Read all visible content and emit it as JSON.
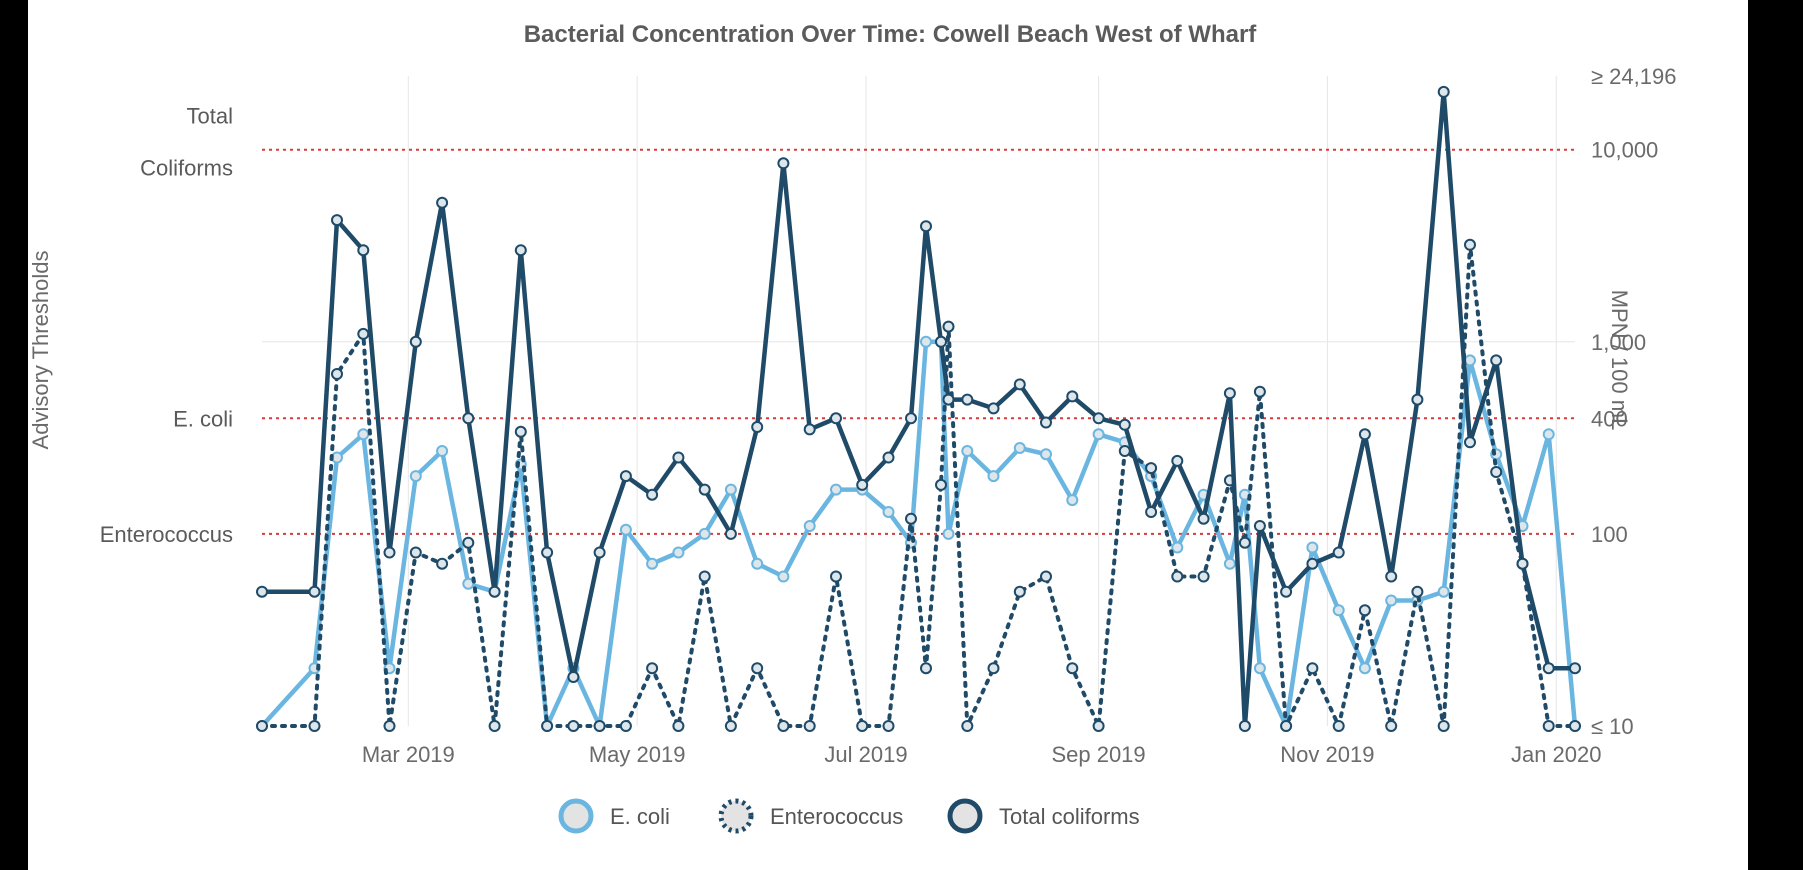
{
  "chart_data": {
    "type": "line",
    "title": "Bacterial Concentration Over Time: Cowell Beach West of Wharf",
    "y_left_label": "Advisory Thresholds",
    "y_right_label": "MPN / 100 mL",
    "y_scale": "log",
    "ylim": [
      10,
      24196
    ],
    "y_ticks": [
      {
        "value": 24196,
        "label": "≥ 24,196"
      },
      {
        "value": 10000,
        "label": "10,000"
      },
      {
        "value": 1000,
        "label": "1,000"
      },
      {
        "value": 400,
        "label": "400"
      },
      {
        "value": 100,
        "label": "100"
      },
      {
        "value": 10,
        "label": "≤ 10"
      }
    ],
    "x_ticks": [
      {
        "date": "2019-03-01",
        "label": "Mar 2019"
      },
      {
        "date": "2019-05-01",
        "label": "May 2019"
      },
      {
        "date": "2019-07-01",
        "label": "Jul 2019"
      },
      {
        "date": "2019-09-01",
        "label": "Sep 2019"
      },
      {
        "date": "2019-11-01",
        "label": "Nov 2019"
      },
      {
        "date": "2020-01-01",
        "label": "Jan 2020"
      }
    ],
    "thresholds": [
      {
        "line1": "Total",
        "line2": "Coliforms",
        "value": 10000
      },
      {
        "line1": "E. coli",
        "line2": "",
        "value": 400
      },
      {
        "line1": "Enterococcus",
        "line2": "",
        "value": 100
      }
    ],
    "x": [
      "2019-01-21",
      "2019-02-04",
      "2019-02-10",
      "2019-02-17",
      "2019-02-24",
      "2019-03-03",
      "2019-03-10",
      "2019-03-17",
      "2019-03-24",
      "2019-03-31",
      "2019-04-07",
      "2019-04-14",
      "2019-04-21",
      "2019-04-28",
      "2019-05-05",
      "2019-05-12",
      "2019-05-19",
      "2019-05-26",
      "2019-06-02",
      "2019-06-09",
      "2019-06-16",
      "2019-06-23",
      "2019-06-30",
      "2019-07-07",
      "2019-07-13",
      "2019-07-17",
      "2019-07-21",
      "2019-07-23",
      "2019-07-28",
      "2019-08-04",
      "2019-08-11",
      "2019-08-18",
      "2019-08-25",
      "2019-09-01",
      "2019-09-08",
      "2019-09-15",
      "2019-09-22",
      "2019-09-29",
      "2019-10-06",
      "2019-10-10",
      "2019-10-14",
      "2019-10-21",
      "2019-10-28",
      "2019-11-04",
      "2019-11-11",
      "2019-11-18",
      "2019-11-25",
      "2019-12-02",
      "2019-12-09",
      "2019-12-16",
      "2019-12-23",
      "2019-12-30",
      "2020-01-06"
    ],
    "series": [
      {
        "name": "E. coli",
        "color": "#6bb6e0",
        "style": "solid",
        "values": [
          10,
          20,
          250,
          330,
          20,
          200,
          270,
          55,
          50,
          230,
          10,
          20,
          10,
          105,
          70,
          80,
          100,
          170,
          70,
          60,
          110,
          170,
          170,
          130,
          90,
          1000,
          1000,
          100,
          270,
          200,
          280,
          260,
          150,
          330,
          300,
          200,
          85,
          160,
          70,
          160,
          20,
          10,
          85,
          40,
          20,
          45,
          45,
          50,
          800,
          260,
          110,
          330,
          10
        ]
      },
      {
        "name": "Enterococcus",
        "color": "#1f4a68",
        "style": "dotted",
        "values": [
          10,
          10,
          680,
          1100,
          10,
          80,
          70,
          90,
          10,
          340,
          10,
          10,
          10,
          10,
          20,
          10,
          60,
          10,
          20,
          10,
          10,
          60,
          10,
          10,
          120,
          20,
          180,
          1200,
          10,
          20,
          50,
          60,
          20,
          10,
          270,
          220,
          60,
          60,
          190,
          90,
          550,
          10,
          20,
          10,
          40,
          10,
          50,
          10,
          3200,
          210,
          70,
          10,
          10
        ]
      },
      {
        "name": "Total coliforms",
        "color": "#1f4a68",
        "style": "solid",
        "values": [
          50,
          50,
          4300,
          3000,
          80,
          1000,
          5300,
          400,
          50,
          3000,
          80,
          18,
          80,
          200,
          160,
          250,
          170,
          100,
          360,
          8500,
          350,
          400,
          180,
          250,
          400,
          4000,
          1000,
          500,
          500,
          450,
          600,
          380,
          520,
          400,
          370,
          130,
          240,
          120,
          540,
          10,
          110,
          50,
          70,
          80,
          330,
          60,
          500,
          20000,
          300,
          800,
          70,
          20,
          20
        ]
      }
    ]
  }
}
